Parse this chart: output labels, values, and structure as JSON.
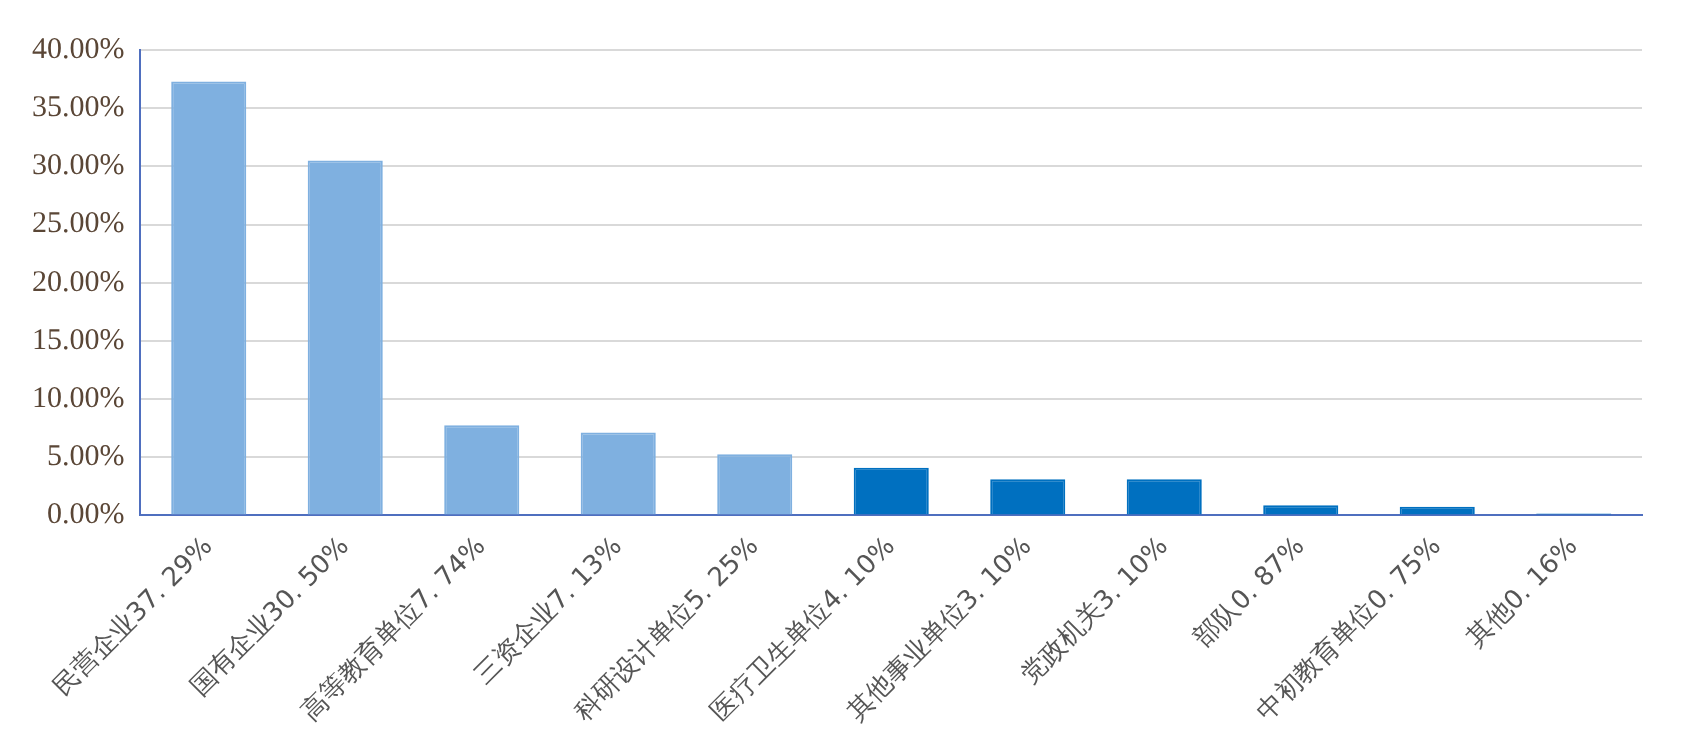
{
  "chart_data": {
    "type": "bar",
    "categories": [
      "民营企业37. 29%",
      "国有企业30. 50%",
      "高等教育单位7. 74%",
      "三资企业7. 13%",
      "科研设计单位5. 25%",
      "医疗卫生单位4. 10%",
      "其他事业单位3. 10%",
      "党政机关3. 10%",
      "部队0. 87%",
      "中初教育单位0. 75%",
      "其他0. 16%"
    ],
    "values": [
      37.29,
      30.5,
      7.74,
      7.13,
      5.25,
      4.1,
      3.1,
      3.1,
      0.87,
      0.75,
      0.16
    ],
    "colors": [
      "#7fb0e0",
      "#7fb0e0",
      "#7fb0e0",
      "#7fb0e0",
      "#7fb0e0",
      "#0070c0",
      "#0070c0",
      "#0070c0",
      "#0070c0",
      "#0070c0",
      "#0070c0"
    ],
    "ylim": [
      0,
      40
    ],
    "yticks": [
      {
        "value": 0,
        "label": "0.00%"
      },
      {
        "value": 5,
        "label": "5.00%"
      },
      {
        "value": 10,
        "label": "10.00%"
      },
      {
        "value": 15,
        "label": "15.00%"
      },
      {
        "value": 20,
        "label": "20.00%"
      },
      {
        "value": 25,
        "label": "25.00%"
      },
      {
        "value": 30,
        "label": "30.00%"
      },
      {
        "value": 35,
        "label": "35.00%"
      },
      {
        "value": 40,
        "label": "40.00%"
      }
    ],
    "grid": "y"
  }
}
